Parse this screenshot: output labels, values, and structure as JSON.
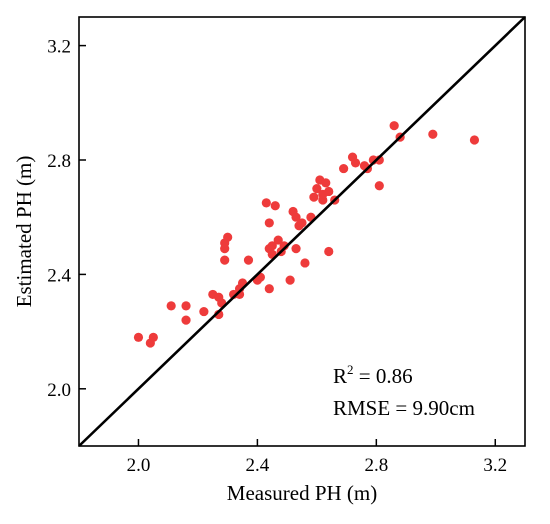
{
  "chart_data": {
    "type": "scatter",
    "title": "",
    "xlabel": "Measured PH (m)",
    "ylabel": "Estimated PH (m)",
    "xlim": [
      1.8,
      3.3
    ],
    "ylim": [
      1.8,
      3.3
    ],
    "xticks": [
      "2.0",
      "2.4",
      "2.8",
      "3.2"
    ],
    "yticks": [
      "2.0",
      "2.4",
      "2.8",
      "3.2"
    ],
    "grid": false,
    "point_color": "#ee3b3b",
    "line_color": "#000000",
    "reference_line": "1:1",
    "annotations": {
      "r2_prefix": "R",
      "r2_sup": "2",
      "r2_value": " = 0.86",
      "rmse": "RMSE = 9.90cm"
    },
    "points": [
      {
        "x": 2.0,
        "y": 2.18
      },
      {
        "x": 2.04,
        "y": 2.16
      },
      {
        "x": 2.05,
        "y": 2.18
      },
      {
        "x": 2.11,
        "y": 2.29
      },
      {
        "x": 2.16,
        "y": 2.24
      },
      {
        "x": 2.16,
        "y": 2.29
      },
      {
        "x": 2.22,
        "y": 2.27
      },
      {
        "x": 2.25,
        "y": 2.33
      },
      {
        "x": 2.27,
        "y": 2.32
      },
      {
        "x": 2.28,
        "y": 2.3
      },
      {
        "x": 2.27,
        "y": 2.26
      },
      {
        "x": 2.29,
        "y": 2.45
      },
      {
        "x": 2.29,
        "y": 2.49
      },
      {
        "x": 2.29,
        "y": 2.51
      },
      {
        "x": 2.3,
        "y": 2.53
      },
      {
        "x": 2.32,
        "y": 2.33
      },
      {
        "x": 2.34,
        "y": 2.33
      },
      {
        "x": 2.34,
        "y": 2.35
      },
      {
        "x": 2.35,
        "y": 2.37
      },
      {
        "x": 2.37,
        "y": 2.45
      },
      {
        "x": 2.4,
        "y": 2.38
      },
      {
        "x": 2.41,
        "y": 2.39
      },
      {
        "x": 2.43,
        "y": 2.65
      },
      {
        "x": 2.44,
        "y": 2.35
      },
      {
        "x": 2.44,
        "y": 2.58
      },
      {
        "x": 2.44,
        "y": 2.49
      },
      {
        "x": 2.45,
        "y": 2.47
      },
      {
        "x": 2.45,
        "y": 2.5
      },
      {
        "x": 2.46,
        "y": 2.64
      },
      {
        "x": 2.47,
        "y": 2.52
      },
      {
        "x": 2.48,
        "y": 2.48
      },
      {
        "x": 2.49,
        "y": 2.5
      },
      {
        "x": 2.51,
        "y": 2.38
      },
      {
        "x": 2.52,
        "y": 2.62
      },
      {
        "x": 2.53,
        "y": 2.6
      },
      {
        "x": 2.53,
        "y": 2.49
      },
      {
        "x": 2.54,
        "y": 2.57
      },
      {
        "x": 2.55,
        "y": 2.58
      },
      {
        "x": 2.56,
        "y": 2.44
      },
      {
        "x": 2.58,
        "y": 2.6
      },
      {
        "x": 2.59,
        "y": 2.67
      },
      {
        "x": 2.6,
        "y": 2.7
      },
      {
        "x": 2.61,
        "y": 2.73
      },
      {
        "x": 2.62,
        "y": 2.66
      },
      {
        "x": 2.62,
        "y": 2.68
      },
      {
        "x": 2.63,
        "y": 2.72
      },
      {
        "x": 2.64,
        "y": 2.69
      },
      {
        "x": 2.64,
        "y": 2.48
      },
      {
        "x": 2.66,
        "y": 2.66
      },
      {
        "x": 2.69,
        "y": 2.77
      },
      {
        "x": 2.72,
        "y": 2.81
      },
      {
        "x": 2.73,
        "y": 2.79
      },
      {
        "x": 2.76,
        "y": 2.78
      },
      {
        "x": 2.77,
        "y": 2.77
      },
      {
        "x": 2.79,
        "y": 2.8
      },
      {
        "x": 2.81,
        "y": 2.8
      },
      {
        "x": 2.81,
        "y": 2.71
      },
      {
        "x": 2.86,
        "y": 2.92
      },
      {
        "x": 2.88,
        "y": 2.88
      },
      {
        "x": 2.99,
        "y": 2.89
      },
      {
        "x": 3.13,
        "y": 2.87
      }
    ]
  }
}
